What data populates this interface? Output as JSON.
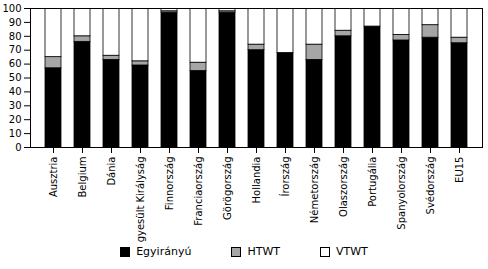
{
  "chart_data": {
    "type": "bar",
    "stacked": true,
    "categories": [
      "Ausztria",
      "Belgium",
      "Dánia",
      "Egyesült Királyság",
      "Finnország",
      "Franciaország",
      "Görögország",
      "Hollandia",
      "Írország",
      "Németország",
      "Olaszország",
      "Portugália",
      "Spanyolország",
      "Svédország",
      "EU15"
    ],
    "series": [
      {
        "name": "Egyirányú",
        "color": "#000000",
        "values": [
          57,
          76,
          63,
          59,
          97,
          55,
          97,
          70,
          68,
          63,
          80,
          87,
          77,
          79,
          75
        ]
      },
      {
        "name": "HTWT",
        "color": "#a6a6a6",
        "values": [
          8,
          4,
          3,
          3,
          1,
          6,
          1,
          4,
          0,
          11,
          4,
          0,
          4,
          9,
          4
        ]
      },
      {
        "name": "VTWT",
        "color": "#ffffff",
        "values": [
          35,
          20,
          34,
          38,
          2,
          39,
          2,
          26,
          32,
          26,
          16,
          13,
          19,
          12,
          21
        ]
      }
    ],
    "ylim": [
      0,
      100
    ],
    "yticks": [
      0,
      10,
      20,
      30,
      40,
      50,
      60,
      70,
      80,
      90,
      100
    ],
    "legend": "bottom"
  }
}
